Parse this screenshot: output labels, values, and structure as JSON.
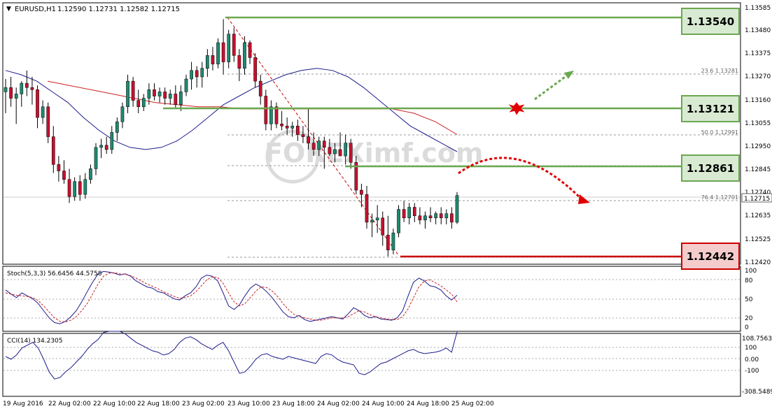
{
  "main": {
    "header_symbol": "EURUSD,H1",
    "header_ohlc": "1.12590 1.12731 1.12582 1.12715",
    "price_range": [
      1.124,
      1.1361
    ],
    "y_ticks": [
      "1.13585",
      "1.13480",
      "1.13375",
      "1.13270",
      "1.13160",
      "1.13055",
      "1.12950",
      "1.12845",
      "1.12740",
      "1.12635",
      "1.12525",
      "1.12420"
    ],
    "current_price": "1.12715",
    "fib_levels": [
      {
        "label": "23.6  1.13281",
        "price": 1.13281
      },
      {
        "label": "50.0  1.12991",
        "price": 1.12991
      },
      {
        "label": "76.4  1.12701",
        "price": 1.12701
      }
    ],
    "key_levels": [
      {
        "label": "1.13540",
        "price": 1.1354,
        "color": "#6aa84f"
      },
      {
        "label": "1.13121",
        "price": 1.13121,
        "color": "#6aa84f"
      },
      {
        "label": "1.12861",
        "price": 1.12861,
        "color": "#6aa84f"
      },
      {
        "label": "1.12442",
        "price": 1.12442,
        "color": "#cc0000"
      }
    ],
    "watermark": "FOREXimf.com",
    "colors": {
      "bull": "#1f8a70",
      "bear": "#c8102e",
      "ma_fast": "#1c1c8c",
      "ma_slow": "#cc2222",
      "support_box": "#d9ead3",
      "resistance_box": "#f4cccc"
    }
  },
  "stoch": {
    "label": "Stoch(5,3,3) 56.6456 44.5758",
    "y_ticks": [
      "100",
      "80",
      "50",
      "20",
      "0"
    ]
  },
  "cci": {
    "label": "CCI(14) 134.2305",
    "y_ticks": [
      "108.7563",
      "100",
      "0.00",
      "-100",
      "-308.5489"
    ]
  },
  "x_labels": [
    "19 Aug 2016",
    "22 Aug 02:00",
    "22 Aug 10:00",
    "22 Aug 18:00",
    "23 Aug 02:00",
    "23 Aug 10:00",
    "23 Aug 18:00",
    "24 Aug 02:00",
    "24 Aug 10:00",
    "24 Aug 18:00",
    "25 Aug 02:00"
  ],
  "chart_data": {
    "type": "candlestick",
    "instrument": "EURUSD",
    "timeframe": "H1",
    "candles": [
      {
        "o": 1.132,
        "h": 1.1326,
        "l": 1.131,
        "c": 1.1322
      },
      {
        "o": 1.1322,
        "h": 1.1327,
        "l": 1.1313,
        "c": 1.1317
      },
      {
        "o": 1.1317,
        "h": 1.1322,
        "l": 1.1305,
        "c": 1.1319
      },
      {
        "o": 1.1319,
        "h": 1.1325,
        "l": 1.1313,
        "c": 1.1324
      },
      {
        "o": 1.1324,
        "h": 1.133,
        "l": 1.1318,
        "c": 1.1322
      },
      {
        "o": 1.1322,
        "h": 1.1327,
        "l": 1.1314,
        "c": 1.1321
      },
      {
        "o": 1.1321,
        "h": 1.1323,
        "l": 1.1303,
        "c": 1.1308
      },
      {
        "o": 1.1308,
        "h": 1.1316,
        "l": 1.1305,
        "c": 1.1313
      },
      {
        "o": 1.1313,
        "h": 1.1315,
        "l": 1.1296,
        "c": 1.1299
      },
      {
        "o": 1.1299,
        "h": 1.1304,
        "l": 1.1282,
        "c": 1.1286
      },
      {
        "o": 1.1286,
        "h": 1.129,
        "l": 1.1278,
        "c": 1.1283
      },
      {
        "o": 1.1283,
        "h": 1.1288,
        "l": 1.1277,
        "c": 1.1279
      },
      {
        "o": 1.1279,
        "h": 1.1284,
        "l": 1.1268,
        "c": 1.1271
      },
      {
        "o": 1.1271,
        "h": 1.128,
        "l": 1.1269,
        "c": 1.1278
      },
      {
        "o": 1.1278,
        "h": 1.1281,
        "l": 1.1269,
        "c": 1.1272
      },
      {
        "o": 1.1272,
        "h": 1.1282,
        "l": 1.127,
        "c": 1.1279
      },
      {
        "o": 1.1279,
        "h": 1.1286,
        "l": 1.1277,
        "c": 1.1284
      },
      {
        "o": 1.1284,
        "h": 1.1296,
        "l": 1.1281,
        "c": 1.1294
      },
      {
        "o": 1.1294,
        "h": 1.1298,
        "l": 1.1289,
        "c": 1.1295
      },
      {
        "o": 1.1295,
        "h": 1.1299,
        "l": 1.1291,
        "c": 1.1293
      },
      {
        "o": 1.1293,
        "h": 1.1304,
        "l": 1.1291,
        "c": 1.1301
      },
      {
        "o": 1.1301,
        "h": 1.1308,
        "l": 1.1297,
        "c": 1.1306
      },
      {
        "o": 1.1306,
        "h": 1.1315,
        "l": 1.1303,
        "c": 1.1313
      },
      {
        "o": 1.1313,
        "h": 1.1328,
        "l": 1.131,
        "c": 1.1325
      },
      {
        "o": 1.1325,
        "h": 1.1327,
        "l": 1.1313,
        "c": 1.1316
      },
      {
        "o": 1.1316,
        "h": 1.1321,
        "l": 1.131,
        "c": 1.1313
      },
      {
        "o": 1.1313,
        "h": 1.1319,
        "l": 1.1311,
        "c": 1.1317
      },
      {
        "o": 1.1317,
        "h": 1.1324,
        "l": 1.1314,
        "c": 1.1321
      },
      {
        "o": 1.1321,
        "h": 1.1324,
        "l": 1.1316,
        "c": 1.1318
      },
      {
        "o": 1.1318,
        "h": 1.1322,
        "l": 1.1315,
        "c": 1.132
      },
      {
        "o": 1.132,
        "h": 1.1322,
        "l": 1.1314,
        "c": 1.1317
      },
      {
        "o": 1.1317,
        "h": 1.1321,
        "l": 1.1314,
        "c": 1.1319
      },
      {
        "o": 1.1319,
        "h": 1.1323,
        "l": 1.1312,
        "c": 1.1314
      },
      {
        "o": 1.1314,
        "h": 1.1323,
        "l": 1.1311,
        "c": 1.132
      },
      {
        "o": 1.132,
        "h": 1.1328,
        "l": 1.1318,
        "c": 1.1326
      },
      {
        "o": 1.1326,
        "h": 1.1334,
        "l": 1.1321,
        "c": 1.133
      },
      {
        "o": 1.133,
        "h": 1.1332,
        "l": 1.1322,
        "c": 1.1327
      },
      {
        "o": 1.1327,
        "h": 1.1334,
        "l": 1.1322,
        "c": 1.1331
      },
      {
        "o": 1.1331,
        "h": 1.134,
        "l": 1.1327,
        "c": 1.1337
      },
      {
        "o": 1.1337,
        "h": 1.1341,
        "l": 1.133,
        "c": 1.1333
      },
      {
        "o": 1.1333,
        "h": 1.1345,
        "l": 1.1331,
        "c": 1.1343
      },
      {
        "o": 1.1343,
        "h": 1.1354,
        "l": 1.1328,
        "c": 1.1334
      },
      {
        "o": 1.1334,
        "h": 1.1349,
        "l": 1.1331,
        "c": 1.1347
      },
      {
        "o": 1.1347,
        "h": 1.135,
        "l": 1.1334,
        "c": 1.1337
      },
      {
        "o": 1.1337,
        "h": 1.134,
        "l": 1.1325,
        "c": 1.1331
      },
      {
        "o": 1.1331,
        "h": 1.1346,
        "l": 1.1328,
        "c": 1.1343
      },
      {
        "o": 1.1343,
        "h": 1.1344,
        "l": 1.1333,
        "c": 1.1336
      },
      {
        "o": 1.1336,
        "h": 1.1338,
        "l": 1.1322,
        "c": 1.1325
      },
      {
        "o": 1.1325,
        "h": 1.1328,
        "l": 1.1314,
        "c": 1.1318
      },
      {
        "o": 1.1318,
        "h": 1.1321,
        "l": 1.1302,
        "c": 1.1305
      },
      {
        "o": 1.1305,
        "h": 1.1316,
        "l": 1.1302,
        "c": 1.1313
      },
      {
        "o": 1.1313,
        "h": 1.1315,
        "l": 1.1303,
        "c": 1.1305
      },
      {
        "o": 1.1305,
        "h": 1.1311,
        "l": 1.1302,
        "c": 1.1304
      },
      {
        "o": 1.1304,
        "h": 1.1308,
        "l": 1.13,
        "c": 1.1303
      },
      {
        "o": 1.1303,
        "h": 1.1306,
        "l": 1.1299,
        "c": 1.1304
      },
      {
        "o": 1.1304,
        "h": 1.1307,
        "l": 1.1297,
        "c": 1.13
      },
      {
        "o": 1.13,
        "h": 1.1304,
        "l": 1.1296,
        "c": 1.1299
      },
      {
        "o": 1.1299,
        "h": 1.1312,
        "l": 1.1293,
        "c": 1.1296
      },
      {
        "o": 1.1296,
        "h": 1.1301,
        "l": 1.129,
        "c": 1.1293
      },
      {
        "o": 1.1293,
        "h": 1.1299,
        "l": 1.129,
        "c": 1.1297
      },
      {
        "o": 1.1297,
        "h": 1.1299,
        "l": 1.1284,
        "c": 1.1294
      },
      {
        "o": 1.1294,
        "h": 1.1298,
        "l": 1.129,
        "c": 1.1291
      },
      {
        "o": 1.1291,
        "h": 1.1296,
        "l": 1.1287,
        "c": 1.1293
      },
      {
        "o": 1.1293,
        "h": 1.1301,
        "l": 1.129,
        "c": 1.129
      },
      {
        "o": 1.129,
        "h": 1.13,
        "l": 1.1286,
        "c": 1.1296
      },
      {
        "o": 1.1296,
        "h": 1.1298,
        "l": 1.1284,
        "c": 1.1287
      },
      {
        "o": 1.1287,
        "h": 1.129,
        "l": 1.1272,
        "c": 1.1274
      },
      {
        "o": 1.1274,
        "h": 1.1277,
        "l": 1.1266,
        "c": 1.1272
      },
      {
        "o": 1.1272,
        "h": 1.1276,
        "l": 1.1256,
        "c": 1.1259
      },
      {
        "o": 1.1259,
        "h": 1.1263,
        "l": 1.1252,
        "c": 1.126
      },
      {
        "o": 1.126,
        "h": 1.1267,
        "l": 1.1254,
        "c": 1.1261
      },
      {
        "o": 1.1261,
        "h": 1.1264,
        "l": 1.1248,
        "c": 1.1253
      },
      {
        "o": 1.1253,
        "h": 1.1262,
        "l": 1.1243,
        "c": 1.1246
      },
      {
        "o": 1.1246,
        "h": 1.1256,
        "l": 1.1244,
        "c": 1.1254
      },
      {
        "o": 1.1254,
        "h": 1.1267,
        "l": 1.1252,
        "c": 1.1265
      },
      {
        "o": 1.1265,
        "h": 1.1269,
        "l": 1.1259,
        "c": 1.1261
      },
      {
        "o": 1.1261,
        "h": 1.1268,
        "l": 1.1258,
        "c": 1.1266
      },
      {
        "o": 1.1266,
        "h": 1.1268,
        "l": 1.1259,
        "c": 1.1262
      },
      {
        "o": 1.1262,
        "h": 1.1266,
        "l": 1.1258,
        "c": 1.126
      },
      {
        "o": 1.126,
        "h": 1.1264,
        "l": 1.1256,
        "c": 1.1262
      },
      {
        "o": 1.1262,
        "h": 1.1266,
        "l": 1.1259,
        "c": 1.1261
      },
      {
        "o": 1.1261,
        "h": 1.1264,
        "l": 1.1258,
        "c": 1.1263
      },
      {
        "o": 1.1263,
        "h": 1.1266,
        "l": 1.1258,
        "c": 1.1261
      },
      {
        "o": 1.1261,
        "h": 1.1265,
        "l": 1.1258,
        "c": 1.1263
      },
      {
        "o": 1.1263,
        "h": 1.1266,
        "l": 1.1256,
        "c": 1.1259
      },
      {
        "o": 1.1259,
        "h": 1.12731,
        "l": 1.12582,
        "c": 1.12715
      }
    ],
    "ma_fast": [
      1.133,
      1.1328,
      1.1325,
      1.132,
      1.1315,
      1.1308,
      1.1302,
      1.1297,
      1.1294,
      1.1293,
      1.1294,
      1.1297,
      1.1302,
      1.1308,
      1.1314,
      1.1318,
      1.1322,
      1.1325,
      1.1328,
      1.133,
      1.1331,
      1.133,
      1.1327,
      1.1322,
      1.1316,
      1.131,
      1.1304,
      1.13,
      1.1296,
      1.1292
    ],
    "ma_slow": [
      1.1325,
      1.1323,
      1.1321,
      1.1319,
      1.1317,
      1.1315,
      1.1314,
      1.1313,
      1.1313,
      1.1312,
      1.1312,
      1.1312,
      1.1312,
      1.1312,
      1.1312,
      1.1312,
      1.1312,
      1.131,
      1.1306,
      1.13
    ],
    "stoch_k": [
      65,
      58,
      52,
      60,
      55,
      50,
      42,
      30,
      18,
      10,
      8,
      12,
      20,
      30,
      45,
      62,
      78,
      92,
      96,
      95,
      93,
      90,
      92,
      88,
      80,
      75,
      70,
      68,
      62,
      60,
      55,
      50,
      48,
      55,
      60,
      70,
      85,
      90,
      88,
      80,
      60,
      38,
      32,
      40,
      55,
      68,
      75,
      70,
      62,
      52,
      40,
      28,
      20,
      18,
      22,
      15,
      12,
      14,
      16,
      18,
      20,
      18,
      16,
      25,
      35,
      30,
      22,
      18,
      20,
      16,
      15,
      14,
      18,
      30,
      55,
      78,
      85,
      80,
      72,
      70,
      65,
      55,
      48,
      56
    ],
    "stoch_d": [
      60,
      58,
      56,
      55,
      54,
      52,
      47,
      38,
      28,
      18,
      12,
      11,
      14,
      20,
      30,
      42,
      58,
      75,
      88,
      93,
      94,
      92,
      91,
      89,
      85,
      80,
      75,
      71,
      67,
      62,
      58,
      54,
      51,
      52,
      55,
      62,
      72,
      82,
      87,
      86,
      76,
      60,
      45,
      38,
      42,
      52,
      63,
      70,
      69,
      63,
      54,
      42,
      32,
      24,
      20,
      18,
      16,
      14,
      14,
      16,
      18,
      18,
      18,
      20,
      25,
      30,
      28,
      23,
      20,
      18,
      16,
      15,
      15,
      20,
      33,
      52,
      70,
      80,
      82,
      77,
      72,
      65,
      58,
      45
    ],
    "cci": [
      -40,
      -60,
      -30,
      20,
      40,
      60,
      20,
      -60,
      -150,
      -200,
      -190,
      -150,
      -120,
      -80,
      -40,
      10,
      50,
      80,
      130,
      150,
      140,
      150,
      120,
      90,
      60,
      40,
      20,
      0,
      -10,
      -30,
      -20,
      10,
      60,
      90,
      100,
      80,
      50,
      30,
      10,
      40,
      60,
      0,
      -80,
      -160,
      -150,
      -110,
      -60,
      -30,
      -20,
      -40,
      -50,
      -60,
      -40,
      -50,
      -60,
      -70,
      -80,
      -90,
      -40,
      -20,
      -30,
      -60,
      -80,
      -90,
      -100,
      -160,
      -170,
      -150,
      -120,
      -90,
      -80,
      -60,
      -40,
      -20,
      0,
      10,
      -10,
      -20,
      -15,
      -10,
      0,
      20,
      -10,
      134
    ]
  }
}
